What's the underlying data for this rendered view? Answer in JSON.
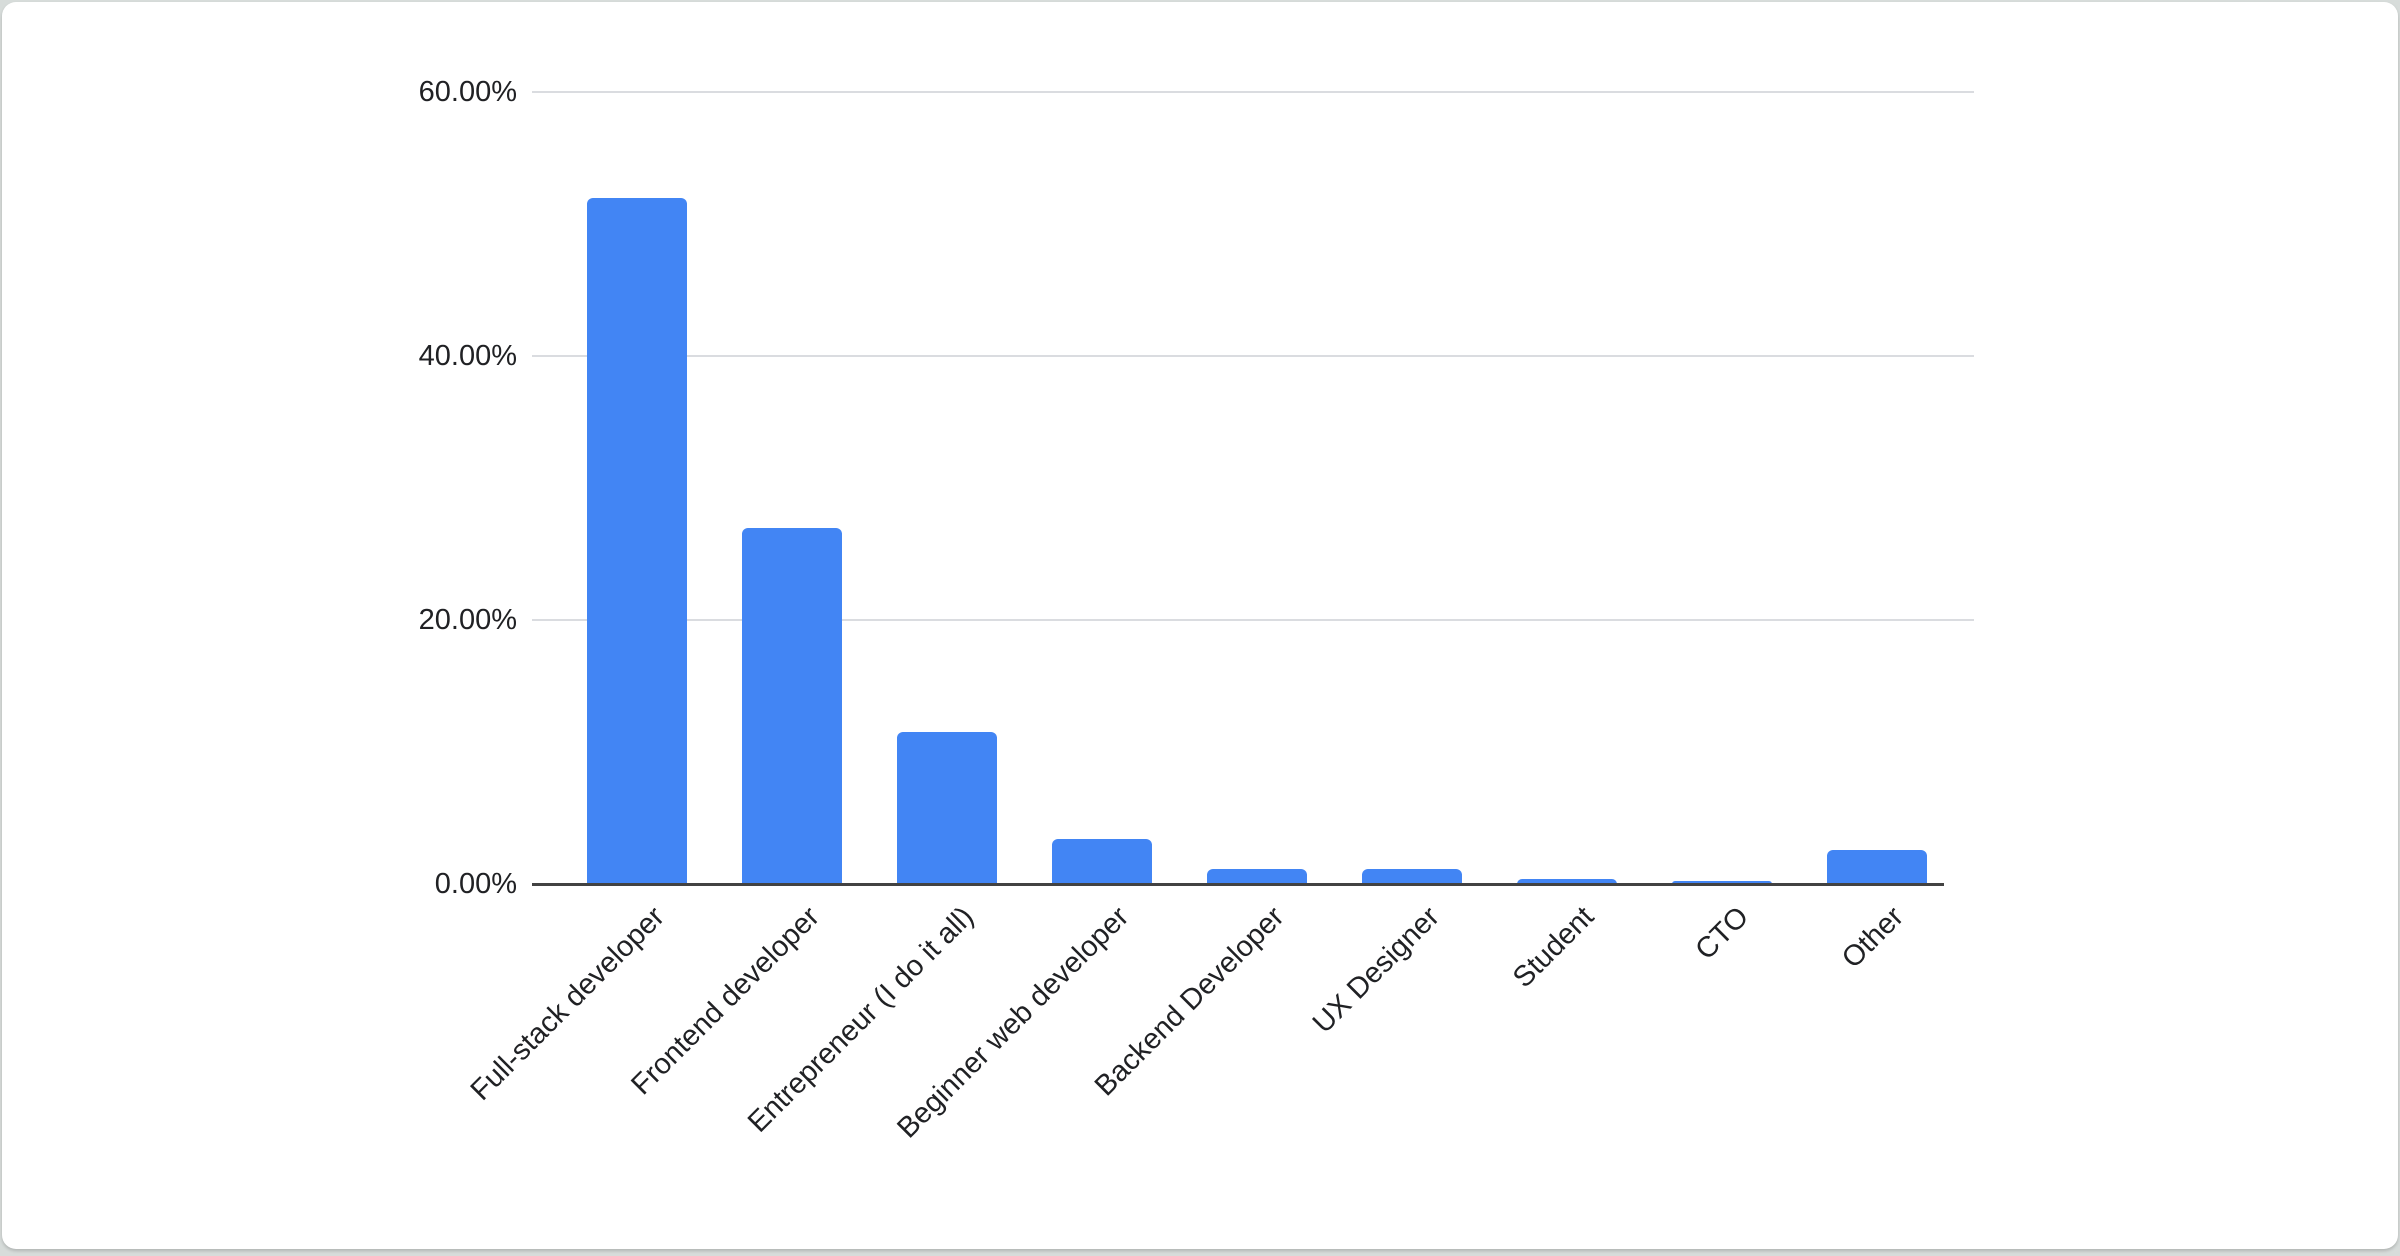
{
  "page": {
    "background_color": "#d7dcda",
    "card_background_color": "#ffffff"
  },
  "chart_data": {
    "type": "bar",
    "title": "",
    "xlabel": "",
    "ylabel": "",
    "categories": [
      "Full-stack developer",
      "Frontend developer",
      "Entrepreneur (I do it all)",
      "Beginner web developer",
      "Backend Developer",
      "UX Designer",
      "Student",
      "CTO",
      "Other"
    ],
    "values": [
      52.0,
      27.0,
      11.5,
      3.4,
      1.1,
      1.1,
      0.4,
      0.25,
      2.6
    ],
    "value_unit": "%",
    "ylim": [
      0,
      60
    ],
    "y_ticks": [
      {
        "value": 0,
        "label": "0.00%"
      },
      {
        "value": 20,
        "label": "20.00%"
      },
      {
        "value": 40,
        "label": "40.00%"
      },
      {
        "value": 60,
        "label": "60.00%"
      }
    ],
    "grid": true,
    "legend_position": "none",
    "bar_color": "#4285f4",
    "gridline_color": "#dadce0",
    "axis_line_color": "#424242",
    "label_color": "#202124"
  }
}
